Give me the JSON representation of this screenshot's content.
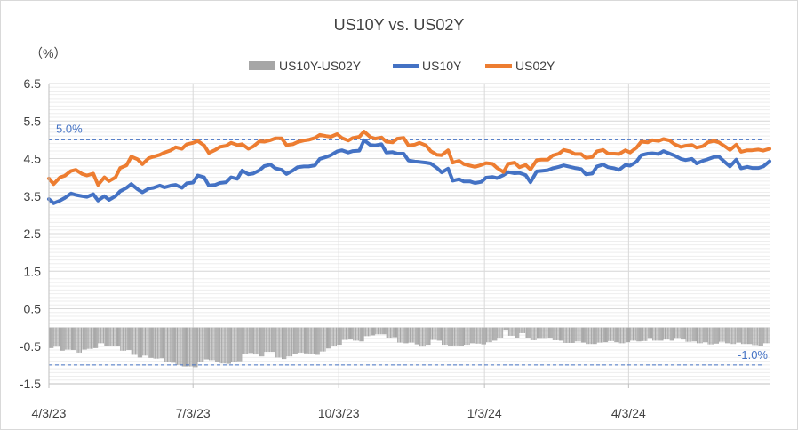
{
  "chart_data": {
    "type": "line",
    "title": "US10Y vs. US02Y",
    "unit_label": "（%）",
    "legend": [
      "US10Y-US02Y",
      "US10Y",
      "US02Y"
    ],
    "legend_position": "top-center",
    "colors": {
      "spread": "#a6a6a6",
      "us10y": "#4472c4",
      "us02y": "#ed7d31",
      "ref": "#4472c4",
      "grid": "#d9d9d9",
      "vgrid": "#d9d9d9",
      "axis": "#bfbfbf",
      "text": "#404040"
    },
    "ylim": [
      -1.5,
      6.5
    ],
    "y_ticks": [
      "6.5",
      "5.5",
      "4.5",
      "3.5",
      "2.5",
      "1.5",
      "0.5",
      "-0.5",
      "-1.5"
    ],
    "y_tick_values": [
      6.5,
      5.5,
      4.5,
      3.5,
      2.5,
      1.5,
      0.5,
      -0.5,
      -1.5
    ],
    "minor_grid_step": 0.1,
    "x_range": [
      "2023-04-03",
      "2024-07-01"
    ],
    "x_ticks": [
      "4/3/23",
      "7/3/23",
      "10/3/23",
      "1/3/24",
      "4/3/24"
    ],
    "x_tick_dates": [
      "2023-04-03",
      "2023-07-03",
      "2023-10-03",
      "2024-01-03",
      "2024-04-03"
    ],
    "reference_lines": [
      {
        "value": 5.0,
        "label": "5.0%"
      },
      {
        "value": -1.0,
        "label": "-1.0%"
      }
    ],
    "series": [
      {
        "name": "US10Y",
        "points": [
          [
            "2023-04-03",
            3.42
          ],
          [
            "2023-04-06",
            3.31
          ],
          [
            "2023-04-10",
            3.38
          ],
          [
            "2023-04-13",
            3.45
          ],
          [
            "2023-04-17",
            3.57
          ],
          [
            "2023-04-20",
            3.53
          ],
          [
            "2023-04-24",
            3.5
          ],
          [
            "2023-04-27",
            3.48
          ],
          [
            "2023-05-01",
            3.55
          ],
          [
            "2023-05-04",
            3.38
          ],
          [
            "2023-05-08",
            3.5
          ],
          [
            "2023-05-11",
            3.4
          ],
          [
            "2023-05-15",
            3.5
          ],
          [
            "2023-05-18",
            3.63
          ],
          [
            "2023-05-22",
            3.72
          ],
          [
            "2023-05-25",
            3.82
          ],
          [
            "2023-05-29",
            3.68
          ],
          [
            "2023-06-01",
            3.6
          ],
          [
            "2023-06-05",
            3.7
          ],
          [
            "2023-06-08",
            3.72
          ],
          [
            "2023-06-12",
            3.78
          ],
          [
            "2023-06-15",
            3.73
          ],
          [
            "2023-06-19",
            3.78
          ],
          [
            "2023-06-22",
            3.8
          ],
          [
            "2023-06-26",
            3.72
          ],
          [
            "2023-06-29",
            3.84
          ],
          [
            "2023-07-03",
            3.86
          ],
          [
            "2023-07-06",
            4.05
          ],
          [
            "2023-07-10",
            4.0
          ],
          [
            "2023-07-13",
            3.78
          ],
          [
            "2023-07-17",
            3.8
          ],
          [
            "2023-07-20",
            3.85
          ],
          [
            "2023-07-24",
            3.87
          ],
          [
            "2023-07-27",
            4.0
          ],
          [
            "2023-07-31",
            3.96
          ],
          [
            "2023-08-03",
            4.18
          ],
          [
            "2023-08-07",
            4.08
          ],
          [
            "2023-08-10",
            4.1
          ],
          [
            "2023-08-14",
            4.19
          ],
          [
            "2023-08-17",
            4.3
          ],
          [
            "2023-08-21",
            4.34
          ],
          [
            "2023-08-24",
            4.24
          ],
          [
            "2023-08-28",
            4.2
          ],
          [
            "2023-08-31",
            4.09
          ],
          [
            "2023-09-04",
            4.18
          ],
          [
            "2023-09-07",
            4.27
          ],
          [
            "2023-09-11",
            4.29
          ],
          [
            "2023-09-14",
            4.29
          ],
          [
            "2023-09-18",
            4.32
          ],
          [
            "2023-09-21",
            4.49
          ],
          [
            "2023-09-25",
            4.54
          ],
          [
            "2023-09-28",
            4.59
          ],
          [
            "2023-10-02",
            4.69
          ],
          [
            "2023-10-05",
            4.72
          ],
          [
            "2023-10-09",
            4.66
          ],
          [
            "2023-10-12",
            4.7
          ],
          [
            "2023-10-16",
            4.71
          ],
          [
            "2023-10-19",
            4.99
          ],
          [
            "2023-10-23",
            4.86
          ],
          [
            "2023-10-26",
            4.85
          ],
          [
            "2023-10-30",
            4.88
          ],
          [
            "2023-11-02",
            4.66
          ],
          [
            "2023-11-06",
            4.67
          ],
          [
            "2023-11-09",
            4.63
          ],
          [
            "2023-11-13",
            4.63
          ],
          [
            "2023-11-16",
            4.45
          ],
          [
            "2023-11-20",
            4.42
          ],
          [
            "2023-11-23",
            4.41
          ],
          [
            "2023-11-27",
            4.39
          ],
          [
            "2023-11-30",
            4.37
          ],
          [
            "2023-12-04",
            4.25
          ],
          [
            "2023-12-07",
            4.13
          ],
          [
            "2023-12-11",
            4.23
          ],
          [
            "2023-12-14",
            3.91
          ],
          [
            "2023-12-18",
            3.95
          ],
          [
            "2023-12-21",
            3.89
          ],
          [
            "2023-12-25",
            3.89
          ],
          [
            "2023-12-28",
            3.85
          ],
          [
            "2024-01-01",
            3.88
          ],
          [
            "2024-01-04",
            3.99
          ],
          [
            "2024-01-08",
            4.01
          ],
          [
            "2024-01-11",
            3.98
          ],
          [
            "2024-01-15",
            4.06
          ],
          [
            "2024-01-18",
            4.14
          ],
          [
            "2024-01-22",
            4.11
          ],
          [
            "2024-01-25",
            4.12
          ],
          [
            "2024-01-29",
            4.06
          ],
          [
            "2024-02-01",
            3.87
          ],
          [
            "2024-02-05",
            4.16
          ],
          [
            "2024-02-08",
            4.17
          ],
          [
            "2024-02-12",
            4.19
          ],
          [
            "2024-02-15",
            4.24
          ],
          [
            "2024-02-19",
            4.28
          ],
          [
            "2024-02-22",
            4.32
          ],
          [
            "2024-02-26",
            4.28
          ],
          [
            "2024-02-29",
            4.25
          ],
          [
            "2024-03-04",
            4.22
          ],
          [
            "2024-03-07",
            4.08
          ],
          [
            "2024-03-11",
            4.1
          ],
          [
            "2024-03-14",
            4.29
          ],
          [
            "2024-03-18",
            4.34
          ],
          [
            "2024-03-21",
            4.27
          ],
          [
            "2024-03-25",
            4.24
          ],
          [
            "2024-03-28",
            4.2
          ],
          [
            "2024-04-01",
            4.33
          ],
          [
            "2024-04-04",
            4.31
          ],
          [
            "2024-04-08",
            4.42
          ],
          [
            "2024-04-11",
            4.59
          ],
          [
            "2024-04-15",
            4.63
          ],
          [
            "2024-04-18",
            4.64
          ],
          [
            "2024-04-22",
            4.62
          ],
          [
            "2024-04-25",
            4.7
          ],
          [
            "2024-04-29",
            4.63
          ],
          [
            "2024-05-02",
            4.58
          ],
          [
            "2024-05-06",
            4.49
          ],
          [
            "2024-05-09",
            4.46
          ],
          [
            "2024-05-13",
            4.49
          ],
          [
            "2024-05-16",
            4.37
          ],
          [
            "2024-05-20",
            4.44
          ],
          [
            "2024-05-23",
            4.48
          ],
          [
            "2024-05-27",
            4.54
          ],
          [
            "2024-05-30",
            4.55
          ],
          [
            "2024-06-03",
            4.4
          ],
          [
            "2024-06-06",
            4.29
          ],
          [
            "2024-06-10",
            4.47
          ],
          [
            "2024-06-13",
            4.24
          ],
          [
            "2024-06-17",
            4.28
          ],
          [
            "2024-06-20",
            4.25
          ],
          [
            "2024-06-24",
            4.25
          ],
          [
            "2024-06-27",
            4.29
          ],
          [
            "2024-07-01",
            4.43
          ]
        ]
      },
      {
        "name": "US02Y",
        "points": [
          [
            "2023-04-03",
            3.97
          ],
          [
            "2023-04-06",
            3.82
          ],
          [
            "2023-04-10",
            4.0
          ],
          [
            "2023-04-13",
            4.04
          ],
          [
            "2023-04-17",
            4.17
          ],
          [
            "2023-04-20",
            4.2
          ],
          [
            "2023-04-24",
            4.09
          ],
          [
            "2023-04-27",
            4.05
          ],
          [
            "2023-05-01",
            4.1
          ],
          [
            "2023-05-04",
            3.8
          ],
          [
            "2023-05-08",
            4.0
          ],
          [
            "2023-05-11",
            3.9
          ],
          [
            "2023-05-15",
            4.0
          ],
          [
            "2023-05-18",
            4.25
          ],
          [
            "2023-05-22",
            4.32
          ],
          [
            "2023-05-25",
            4.55
          ],
          [
            "2023-05-29",
            4.48
          ],
          [
            "2023-06-01",
            4.35
          ],
          [
            "2023-06-05",
            4.51
          ],
          [
            "2023-06-08",
            4.55
          ],
          [
            "2023-06-12",
            4.6
          ],
          [
            "2023-06-15",
            4.66
          ],
          [
            "2023-06-19",
            4.72
          ],
          [
            "2023-06-22",
            4.8
          ],
          [
            "2023-06-26",
            4.76
          ],
          [
            "2023-06-29",
            4.88
          ],
          [
            "2023-07-03",
            4.92
          ],
          [
            "2023-07-06",
            4.97
          ],
          [
            "2023-07-10",
            4.85
          ],
          [
            "2023-07-13",
            4.65
          ],
          [
            "2023-07-17",
            4.73
          ],
          [
            "2023-07-20",
            4.81
          ],
          [
            "2023-07-24",
            4.84
          ],
          [
            "2023-07-27",
            4.92
          ],
          [
            "2023-07-31",
            4.86
          ],
          [
            "2023-08-03",
            4.88
          ],
          [
            "2023-08-07",
            4.76
          ],
          [
            "2023-08-10",
            4.82
          ],
          [
            "2023-08-14",
            4.96
          ],
          [
            "2023-08-17",
            4.95
          ],
          [
            "2023-08-21",
            4.99
          ],
          [
            "2023-08-24",
            5.04
          ],
          [
            "2023-08-28",
            5.04
          ],
          [
            "2023-08-31",
            4.86
          ],
          [
            "2023-09-04",
            4.88
          ],
          [
            "2023-09-07",
            4.94
          ],
          [
            "2023-09-11",
            4.98
          ],
          [
            "2023-09-14",
            5.0
          ],
          [
            "2023-09-18",
            5.05
          ],
          [
            "2023-09-21",
            5.13
          ],
          [
            "2023-09-25",
            5.1
          ],
          [
            "2023-09-28",
            5.08
          ],
          [
            "2023-10-02",
            5.15
          ],
          [
            "2023-10-05",
            5.05
          ],
          [
            "2023-10-09",
            4.98
          ],
          [
            "2023-10-12",
            5.05
          ],
          [
            "2023-10-16",
            5.08
          ],
          [
            "2023-10-19",
            5.22
          ],
          [
            "2023-10-23",
            5.07
          ],
          [
            "2023-10-26",
            5.03
          ],
          [
            "2023-10-30",
            5.06
          ],
          [
            "2023-11-02",
            4.95
          ],
          [
            "2023-11-06",
            4.93
          ],
          [
            "2023-11-09",
            5.03
          ],
          [
            "2023-11-13",
            5.05
          ],
          [
            "2023-11-16",
            4.85
          ],
          [
            "2023-11-20",
            4.87
          ],
          [
            "2023-11-23",
            4.92
          ],
          [
            "2023-11-27",
            4.85
          ],
          [
            "2023-11-30",
            4.7
          ],
          [
            "2023-12-04",
            4.6
          ],
          [
            "2023-12-07",
            4.59
          ],
          [
            "2023-12-11",
            4.72
          ],
          [
            "2023-12-14",
            4.39
          ],
          [
            "2023-12-18",
            4.44
          ],
          [
            "2023-12-21",
            4.35
          ],
          [
            "2023-12-25",
            4.31
          ],
          [
            "2023-12-28",
            4.28
          ],
          [
            "2024-01-01",
            4.33
          ],
          [
            "2024-01-04",
            4.38
          ],
          [
            "2024-01-08",
            4.36
          ],
          [
            "2024-01-11",
            4.25
          ],
          [
            "2024-01-15",
            4.14
          ],
          [
            "2024-01-18",
            4.36
          ],
          [
            "2024-01-22",
            4.39
          ],
          [
            "2024-01-25",
            4.27
          ],
          [
            "2024-01-29",
            4.33
          ],
          [
            "2024-02-01",
            4.21
          ],
          [
            "2024-02-05",
            4.46
          ],
          [
            "2024-02-08",
            4.47
          ],
          [
            "2024-02-12",
            4.47
          ],
          [
            "2024-02-15",
            4.58
          ],
          [
            "2024-02-19",
            4.63
          ],
          [
            "2024-02-22",
            4.73
          ],
          [
            "2024-02-26",
            4.69
          ],
          [
            "2024-02-29",
            4.62
          ],
          [
            "2024-03-04",
            4.62
          ],
          [
            "2024-03-07",
            4.52
          ],
          [
            "2024-03-11",
            4.54
          ],
          [
            "2024-03-14",
            4.69
          ],
          [
            "2024-03-18",
            4.73
          ],
          [
            "2024-03-21",
            4.63
          ],
          [
            "2024-03-25",
            4.63
          ],
          [
            "2024-03-28",
            4.62
          ],
          [
            "2024-04-01",
            4.72
          ],
          [
            "2024-04-04",
            4.66
          ],
          [
            "2024-04-08",
            4.79
          ],
          [
            "2024-04-11",
            4.95
          ],
          [
            "2024-04-15",
            4.93
          ],
          [
            "2024-04-18",
            4.99
          ],
          [
            "2024-04-22",
            4.97
          ],
          [
            "2024-04-25",
            5.02
          ],
          [
            "2024-04-29",
            4.98
          ],
          [
            "2024-05-02",
            4.88
          ],
          [
            "2024-05-06",
            4.81
          ],
          [
            "2024-05-09",
            4.84
          ],
          [
            "2024-05-13",
            4.86
          ],
          [
            "2024-05-16",
            4.79
          ],
          [
            "2024-05-20",
            4.83
          ],
          [
            "2024-05-23",
            4.93
          ],
          [
            "2024-05-27",
            4.97
          ],
          [
            "2024-05-30",
            4.93
          ],
          [
            "2024-06-03",
            4.82
          ],
          [
            "2024-06-06",
            4.73
          ],
          [
            "2024-06-10",
            4.87
          ],
          [
            "2024-06-13",
            4.68
          ],
          [
            "2024-06-17",
            4.72
          ],
          [
            "2024-06-20",
            4.72
          ],
          [
            "2024-06-24",
            4.74
          ],
          [
            "2024-06-27",
            4.71
          ],
          [
            "2024-07-01",
            4.76
          ]
        ]
      },
      {
        "name": "US10Y-US02Y",
        "type": "bar",
        "derived_from": [
          "US10Y",
          "US02Y"
        ]
      }
    ]
  }
}
